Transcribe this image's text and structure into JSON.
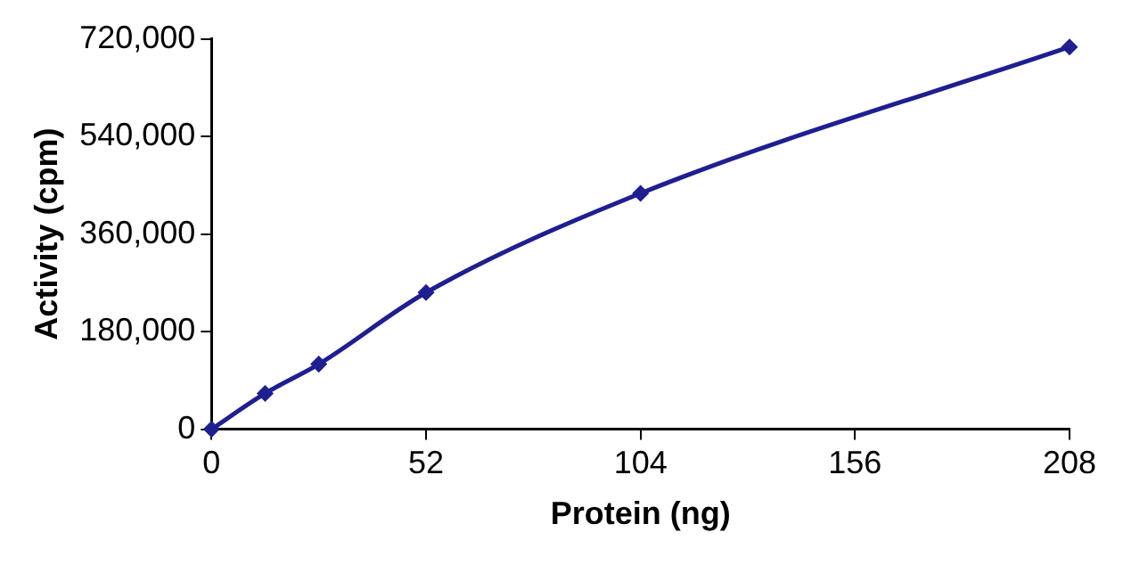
{
  "chart_data": {
    "type": "line",
    "xlabel": "Protein (ng)",
    "ylabel": "Activity (cpm)",
    "x": [
      0,
      13,
      26,
      52,
      104,
      208
    ],
    "series": [
      {
        "color": "#1f1f8f",
        "values": [
          0,
          66000,
          120000,
          252000,
          435000,
          705000
        ]
      }
    ],
    "xlim": [
      0,
      208
    ],
    "xticks": [
      0,
      52,
      104,
      156,
      208
    ],
    "ylim": [
      0,
      720000
    ],
    "yticks": [
      {
        "value": 0,
        "label": "0"
      },
      {
        "value": 180000,
        "label": "180,000"
      },
      {
        "value": 360000,
        "label": "360,000"
      },
      {
        "value": 540000,
        "label": "540,000"
      },
      {
        "value": 720000,
        "label": "720,000"
      }
    ],
    "grid": false,
    "legend": false,
    "marker": "diamond",
    "line_style": "solid"
  }
}
